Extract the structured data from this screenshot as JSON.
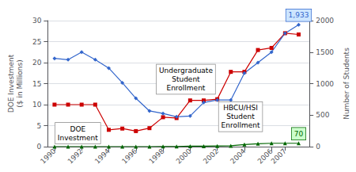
{
  "chart_data": {
    "type": "line",
    "ylabel": "DOE Investment\n($ in Millions)",
    "y2label": "Number of Students",
    "x": [
      1990,
      1991,
      1992,
      1993,
      1994,
      1995,
      1996,
      1997,
      1998,
      1999,
      2000,
      2001,
      2002,
      2003,
      2004,
      2005,
      2006,
      2007,
      2008
    ],
    "series": [
      {
        "color": "#cc0000",
        "marker": "square",
        "values": [
          10,
          10,
          10,
          10,
          4.0,
          4.3,
          3.7,
          4.4,
          7.0,
          6.8,
          11.0,
          11.0,
          11.3,
          17.8,
          17.8,
          23.0,
          23.5,
          27.0,
          26.7
        ]
      },
      {
        "color": "#3366cc",
        "marker": "diamond",
        "values": [
          21,
          20.7,
          22.5,
          20.7,
          18.7,
          15.2,
          11.5,
          8.5,
          7.9,
          7.1,
          7.3,
          10.5,
          11.1,
          11.1,
          17.5,
          20.0,
          22.5,
          27.0,
          29.0
        ]
      },
      {
        "color": "#006600",
        "marker": "triangle",
        "values": [
          0,
          0,
          0,
          0,
          0,
          0,
          0,
          0,
          0.05,
          0.05,
          0.1,
          0.1,
          0.15,
          0.2,
          0.5,
          0.7,
          0.8,
          0.8,
          0.8
        ]
      }
    ],
    "xlim": [
      1989.5,
      2008.8
    ],
    "xticks": [
      1990,
      1992,
      1994,
      1996,
      1998,
      2000,
      2002,
      2004,
      2006,
      2007
    ],
    "ylim": [
      0,
      30
    ],
    "yticks": [
      0,
      5,
      10,
      15,
      20,
      25,
      30
    ],
    "y2lim": [
      0,
      2000
    ],
    "y2ticks": [
      0,
      500,
      1000,
      1500,
      2000
    ],
    "grid": true,
    "annotations": [
      {
        "text": "DOE\nInvestment"
      },
      {
        "text": "Undergraduate\nStudent\nEnrollment"
      },
      {
        "text": "HBCU/HSI\nStudent\nEnrollment"
      },
      {
        "text": "1,933"
      },
      {
        "text": "70"
      }
    ]
  }
}
